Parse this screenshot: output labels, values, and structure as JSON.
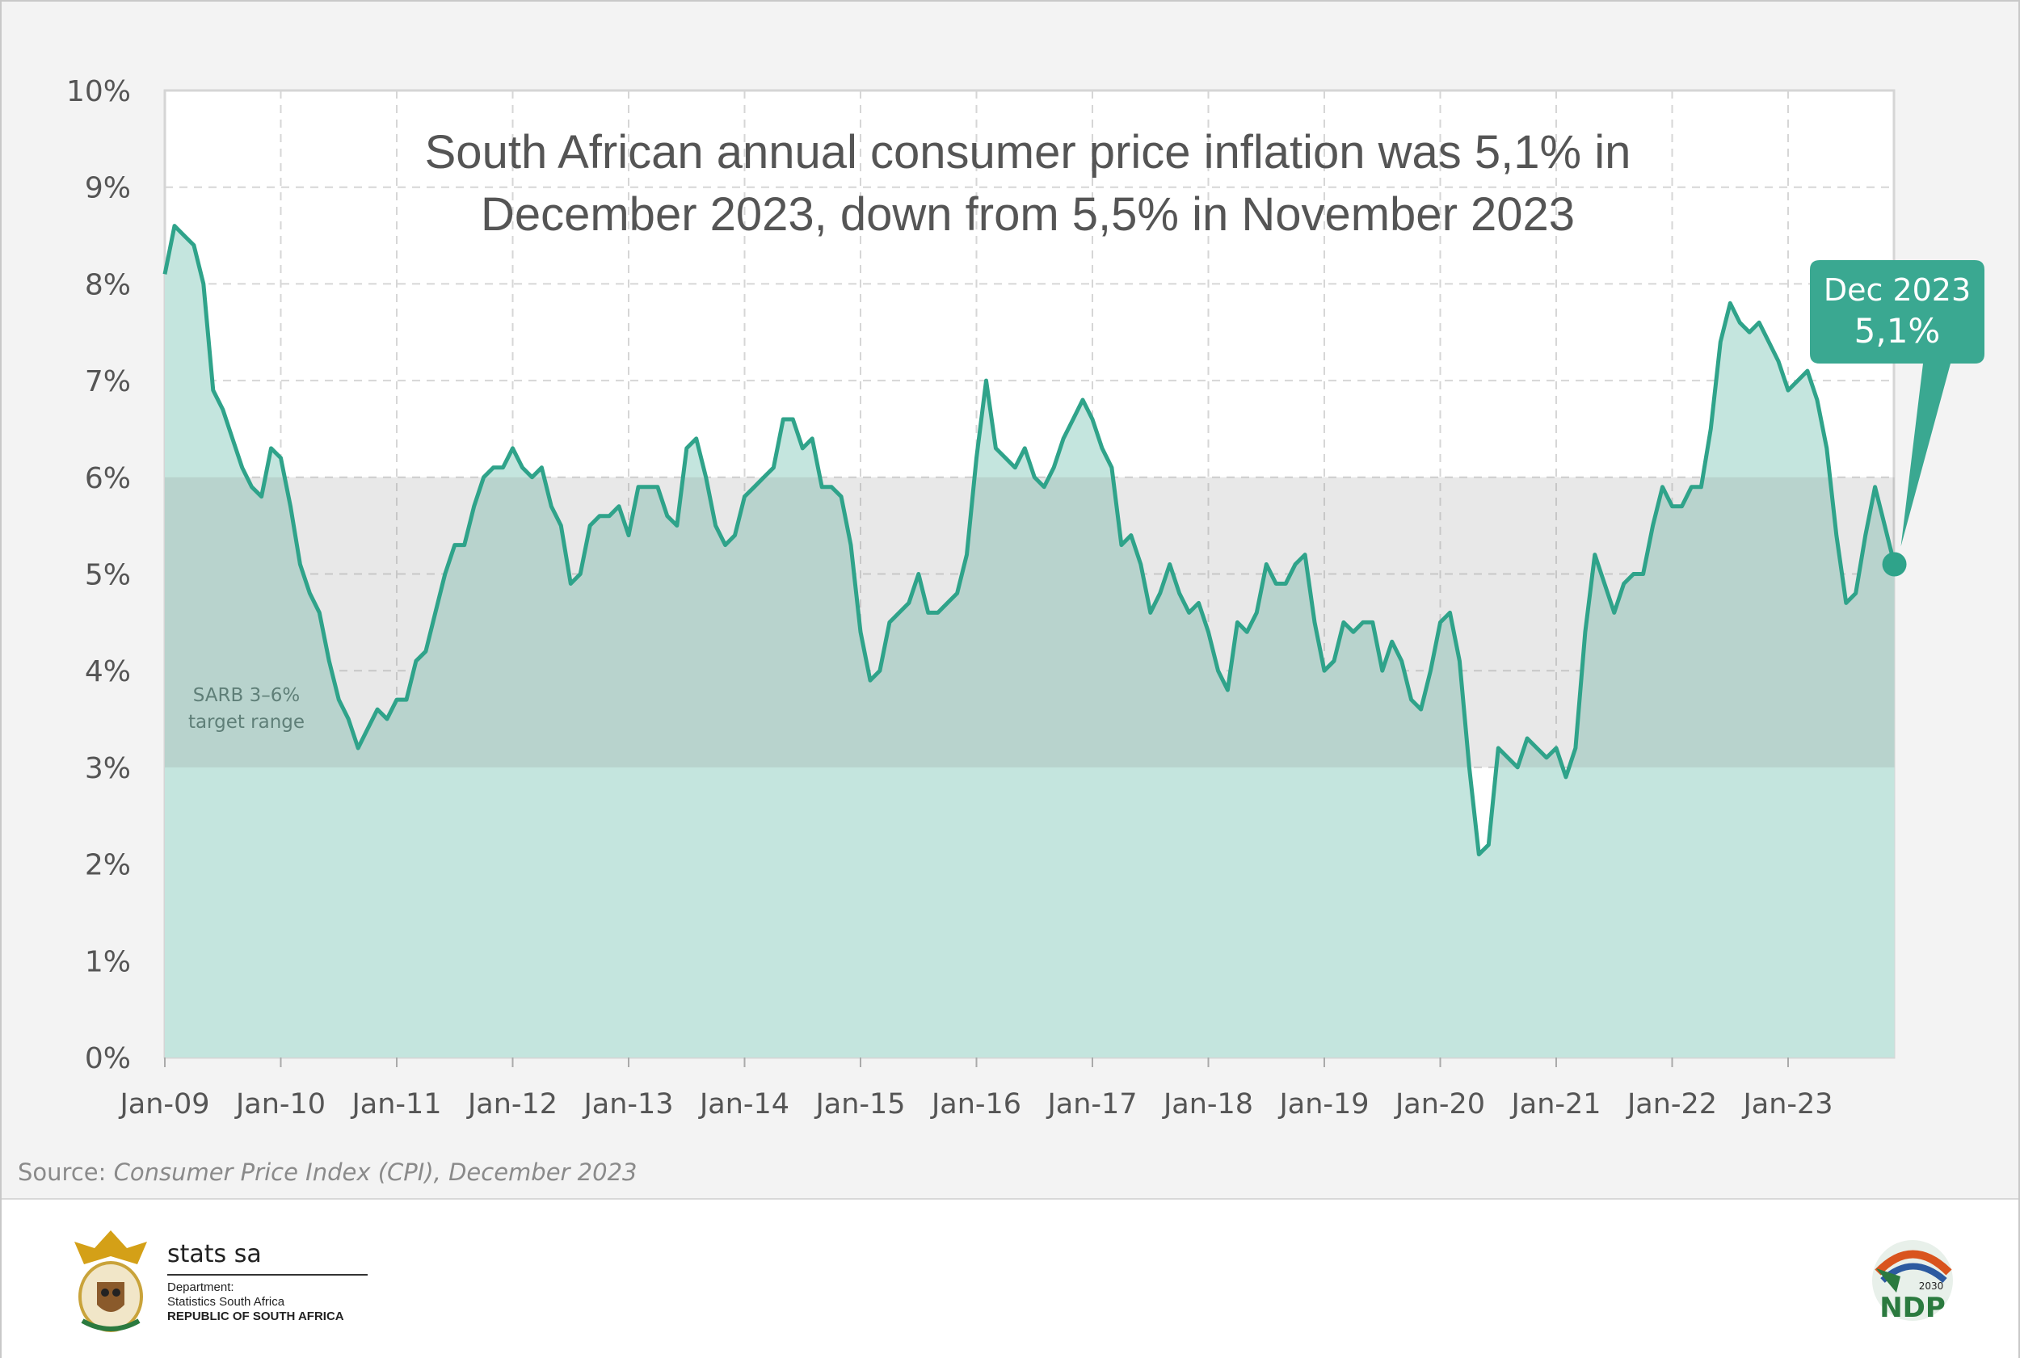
{
  "chart_data": {
    "type": "area",
    "title": "South African annual consumer price inflation was 5,1% in December 2023, down from 5,5% in November 2023",
    "title_lines": [
      "South African annual consumer price inflation was 5,1% in",
      "December 2023, down from 5,5% in November 2023"
    ],
    "xlabel": "",
    "ylabel": "",
    "ylim": [
      0,
      10
    ],
    "y_ticks": [
      "0%",
      "1%",
      "2%",
      "3%",
      "4%",
      "5%",
      "6%",
      "7%",
      "8%",
      "9%",
      "10%"
    ],
    "x_ticks": [
      "Jan-09",
      "Jan-10",
      "Jan-11",
      "Jan-12",
      "Jan-13",
      "Jan-14",
      "Jan-15",
      "Jan-16",
      "Jan-17",
      "Jan-18",
      "Jan-19",
      "Jan-20",
      "Jan-21",
      "Jan-22",
      "Jan-23"
    ],
    "x_start": "Jan-09",
    "x_end": "Dec-23",
    "grid": true,
    "band": {
      "from": 3,
      "to": 6,
      "label_lines": [
        "SARB 3–6%",
        "target range"
      ]
    },
    "callout": {
      "line1": "Dec 2023",
      "line2": "5,1%"
    },
    "colors": {
      "line": "#2fa38a",
      "fill": "#c4e5de",
      "band": "#d9d9d9",
      "callout": "#3aa891"
    },
    "values": [
      8.1,
      8.6,
      8.5,
      8.4,
      8.0,
      6.9,
      6.7,
      6.4,
      6.1,
      5.9,
      5.8,
      6.3,
      6.2,
      5.7,
      5.1,
      4.8,
      4.6,
      4.1,
      3.7,
      3.5,
      3.2,
      3.4,
      3.6,
      3.5,
      3.7,
      3.7,
      4.1,
      4.2,
      4.6,
      5.0,
      5.3,
      5.3,
      5.7,
      6.0,
      6.1,
      6.1,
      6.3,
      6.1,
      6.0,
      6.1,
      5.7,
      5.5,
      4.9,
      5.0,
      5.5,
      5.6,
      5.6,
      5.7,
      5.4,
      5.9,
      5.9,
      5.9,
      5.6,
      5.5,
      6.3,
      6.4,
      6.0,
      5.5,
      5.3,
      5.4,
      5.8,
      5.9,
      6.0,
      6.1,
      6.6,
      6.6,
      6.3,
      6.4,
      5.9,
      5.9,
      5.8,
      5.3,
      4.4,
      3.9,
      4.0,
      4.5,
      4.6,
      4.7,
      5.0,
      4.6,
      4.6,
      4.7,
      4.8,
      5.2,
      6.2,
      7.0,
      6.3,
      6.2,
      6.1,
      6.3,
      6.0,
      5.9,
      6.1,
      6.4,
      6.6,
      6.8,
      6.6,
      6.3,
      6.1,
      5.3,
      5.4,
      5.1,
      4.6,
      4.8,
      5.1,
      4.8,
      4.6,
      4.7,
      4.4,
      4.0,
      3.8,
      4.5,
      4.4,
      4.6,
      5.1,
      4.9,
      4.9,
      5.1,
      5.2,
      4.5,
      4.0,
      4.1,
      4.5,
      4.4,
      4.5,
      4.5,
      4.0,
      4.3,
      4.1,
      3.7,
      3.6,
      4.0,
      4.5,
      4.6,
      4.1,
      3.0,
      2.1,
      2.2,
      3.2,
      3.1,
      3.0,
      3.3,
      3.2,
      3.1,
      3.2,
      2.9,
      3.2,
      4.4,
      5.2,
      4.9,
      4.6,
      4.9,
      5.0,
      5.0,
      5.5,
      5.9,
      5.7,
      5.7,
      5.9,
      5.9,
      6.5,
      7.4,
      7.8,
      7.6,
      7.5,
      7.6,
      7.4,
      7.2,
      6.9,
      7.0,
      7.1,
      6.8,
      6.3,
      5.4,
      4.7,
      4.8,
      5.4,
      5.9,
      5.5,
      5.1
    ]
  },
  "source": {
    "prefix": "Source: ",
    "text": "Consumer Price Index (CPI), December 2023"
  },
  "footer": {
    "stats_name": "stats sa",
    "dept_label": "Department:",
    "dept_name": "Statistics South Africa",
    "country": "REPUBLIC OF SOUTH AFRICA",
    "ndp_logo": "NDP 2030",
    "coat_of_arms_icon": "coat-of-arms-icon"
  }
}
